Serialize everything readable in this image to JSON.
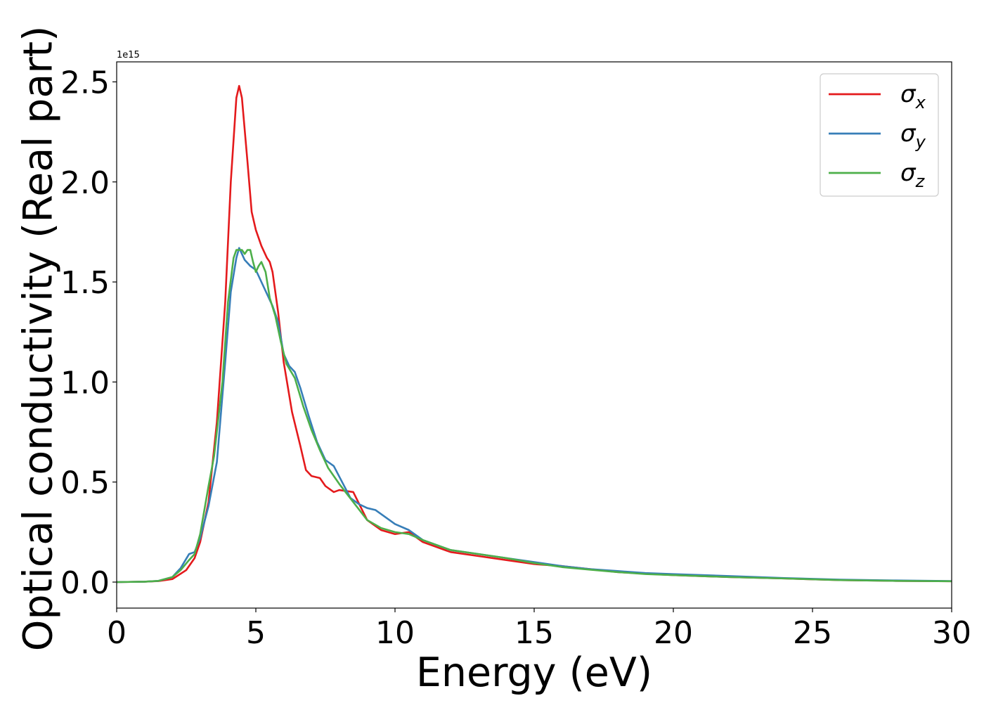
{
  "chart_data": {
    "type": "line",
    "xlabel": "Energy (eV)",
    "ylabel": "Optical conductivity (Real part)",
    "y_offset_label": "1e15",
    "xlim": [
      0,
      30
    ],
    "ylim": [
      -0.13,
      2.6
    ],
    "x_ticks": [
      0,
      5,
      10,
      15,
      20,
      25,
      30
    ],
    "x_tick_labels": [
      "0",
      "5",
      "10",
      "15",
      "20",
      "25",
      "30"
    ],
    "y_ticks": [
      0.0,
      0.5,
      1.0,
      1.5,
      2.0,
      2.5
    ],
    "y_tick_labels": [
      "0.0",
      "0.5",
      "1.0",
      "1.5",
      "2.0",
      "2.5"
    ],
    "grid": false,
    "legend_position": "top-right",
    "series": [
      {
        "name": "σx",
        "name_base": "σ",
        "name_sub": "x",
        "color": "#e41a1c",
        "points": [
          [
            0,
            0
          ],
          [
            1,
            0.002
          ],
          [
            1.5,
            0.005
          ],
          [
            2,
            0.015
          ],
          [
            2.5,
            0.06
          ],
          [
            2.8,
            0.12
          ],
          [
            3.0,
            0.2
          ],
          [
            3.3,
            0.4
          ],
          [
            3.6,
            0.8
          ],
          [
            3.9,
            1.4
          ],
          [
            4.1,
            2.0
          ],
          [
            4.3,
            2.42
          ],
          [
            4.4,
            2.48
          ],
          [
            4.5,
            2.42
          ],
          [
            4.7,
            2.1
          ],
          [
            4.85,
            1.85
          ],
          [
            5.0,
            1.76
          ],
          [
            5.2,
            1.68
          ],
          [
            5.4,
            1.62
          ],
          [
            5.5,
            1.6
          ],
          [
            5.6,
            1.55
          ],
          [
            5.8,
            1.35
          ],
          [
            6.0,
            1.1
          ],
          [
            6.3,
            0.85
          ],
          [
            6.6,
            0.68
          ],
          [
            6.8,
            0.56
          ],
          [
            7.0,
            0.53
          ],
          [
            7.3,
            0.52
          ],
          [
            7.5,
            0.48
          ],
          [
            7.8,
            0.45
          ],
          [
            8.0,
            0.46
          ],
          [
            8.5,
            0.45
          ],
          [
            9.0,
            0.31
          ],
          [
            9.5,
            0.26
          ],
          [
            10.0,
            0.24
          ],
          [
            10.5,
            0.25
          ],
          [
            11.0,
            0.2
          ],
          [
            12.0,
            0.15
          ],
          [
            13.0,
            0.13
          ],
          [
            14.0,
            0.11
          ],
          [
            15.0,
            0.09
          ],
          [
            16.0,
            0.08
          ],
          [
            17.0,
            0.065
          ],
          [
            18.0,
            0.05
          ],
          [
            19.0,
            0.042
          ],
          [
            20.0,
            0.035
          ],
          [
            22.0,
            0.025
          ],
          [
            24.0,
            0.018
          ],
          [
            26.0,
            0.01
          ],
          [
            28.0,
            0.006
          ],
          [
            30.0,
            0.004
          ]
        ]
      },
      {
        "name": "σy",
        "name_base": "σ",
        "name_sub": "y",
        "color": "#377eb8",
        "points": [
          [
            0,
            0
          ],
          [
            1,
            0.002
          ],
          [
            1.5,
            0.006
          ],
          [
            2,
            0.025
          ],
          [
            2.3,
            0.07
          ],
          [
            2.6,
            0.14
          ],
          [
            2.8,
            0.15
          ],
          [
            3.0,
            0.22
          ],
          [
            3.3,
            0.38
          ],
          [
            3.6,
            0.6
          ],
          [
            3.9,
            1.1
          ],
          [
            4.1,
            1.45
          ],
          [
            4.3,
            1.62
          ],
          [
            4.4,
            1.67
          ],
          [
            4.5,
            1.64
          ],
          [
            4.6,
            1.61
          ],
          [
            4.8,
            1.58
          ],
          [
            5.0,
            1.56
          ],
          [
            5.3,
            1.47
          ],
          [
            5.6,
            1.38
          ],
          [
            5.8,
            1.3
          ],
          [
            6.0,
            1.14
          ],
          [
            6.2,
            1.08
          ],
          [
            6.4,
            1.05
          ],
          [
            6.6,
            0.97
          ],
          [
            6.9,
            0.83
          ],
          [
            7.2,
            0.7
          ],
          [
            7.5,
            0.61
          ],
          [
            7.8,
            0.58
          ],
          [
            8.1,
            0.5
          ],
          [
            8.4,
            0.42
          ],
          [
            8.7,
            0.39
          ],
          [
            9.0,
            0.37
          ],
          [
            9.3,
            0.36
          ],
          [
            9.6,
            0.33
          ],
          [
            10.0,
            0.29
          ],
          [
            10.5,
            0.26
          ],
          [
            11.0,
            0.21
          ],
          [
            12.0,
            0.16
          ],
          [
            13.0,
            0.14
          ],
          [
            14.0,
            0.12
          ],
          [
            15.0,
            0.1
          ],
          [
            16.0,
            0.08
          ],
          [
            17.0,
            0.065
          ],
          [
            18.0,
            0.055
          ],
          [
            19.0,
            0.045
          ],
          [
            20.0,
            0.04
          ],
          [
            22.0,
            0.03
          ],
          [
            24.0,
            0.02
          ],
          [
            26.0,
            0.012
          ],
          [
            28.0,
            0.008
          ],
          [
            30.0,
            0.005
          ]
        ]
      },
      {
        "name": "σz",
        "name_base": "σ",
        "name_sub": "z",
        "color": "#4daf4a",
        "points": [
          [
            0,
            0
          ],
          [
            1,
            0.002
          ],
          [
            1.5,
            0.006
          ],
          [
            2,
            0.025
          ],
          [
            2.3,
            0.06
          ],
          [
            2.6,
            0.11
          ],
          [
            2.8,
            0.14
          ],
          [
            3.0,
            0.24
          ],
          [
            3.3,
            0.48
          ],
          [
            3.5,
            0.63
          ],
          [
            3.8,
            1.0
          ],
          [
            4.0,
            1.4
          ],
          [
            4.2,
            1.62
          ],
          [
            4.3,
            1.66
          ],
          [
            4.5,
            1.66
          ],
          [
            4.6,
            1.64
          ],
          [
            4.7,
            1.66
          ],
          [
            4.8,
            1.66
          ],
          [
            4.9,
            1.6
          ],
          [
            5.0,
            1.55
          ],
          [
            5.1,
            1.58
          ],
          [
            5.2,
            1.6
          ],
          [
            5.35,
            1.55
          ],
          [
            5.5,
            1.42
          ],
          [
            5.7,
            1.33
          ],
          [
            5.9,
            1.2
          ],
          [
            6.1,
            1.09
          ],
          [
            6.4,
            1.02
          ],
          [
            6.7,
            0.88
          ],
          [
            7.0,
            0.76
          ],
          [
            7.3,
            0.66
          ],
          [
            7.6,
            0.57
          ],
          [
            8.0,
            0.49
          ],
          [
            8.5,
            0.4
          ],
          [
            9.0,
            0.31
          ],
          [
            9.5,
            0.27
          ],
          [
            10.0,
            0.25
          ],
          [
            10.5,
            0.24
          ],
          [
            11.0,
            0.21
          ],
          [
            12.0,
            0.16
          ],
          [
            13.0,
            0.14
          ],
          [
            14.0,
            0.12
          ],
          [
            15.0,
            0.095
          ],
          [
            16.0,
            0.075
          ],
          [
            17.0,
            0.062
          ],
          [
            18.0,
            0.05
          ],
          [
            19.0,
            0.04
          ],
          [
            20.0,
            0.035
          ],
          [
            22.0,
            0.025
          ],
          [
            24.0,
            0.018
          ],
          [
            26.0,
            0.01
          ],
          [
            28.0,
            0.006
          ],
          [
            30.0,
            0.004
          ]
        ]
      }
    ]
  }
}
